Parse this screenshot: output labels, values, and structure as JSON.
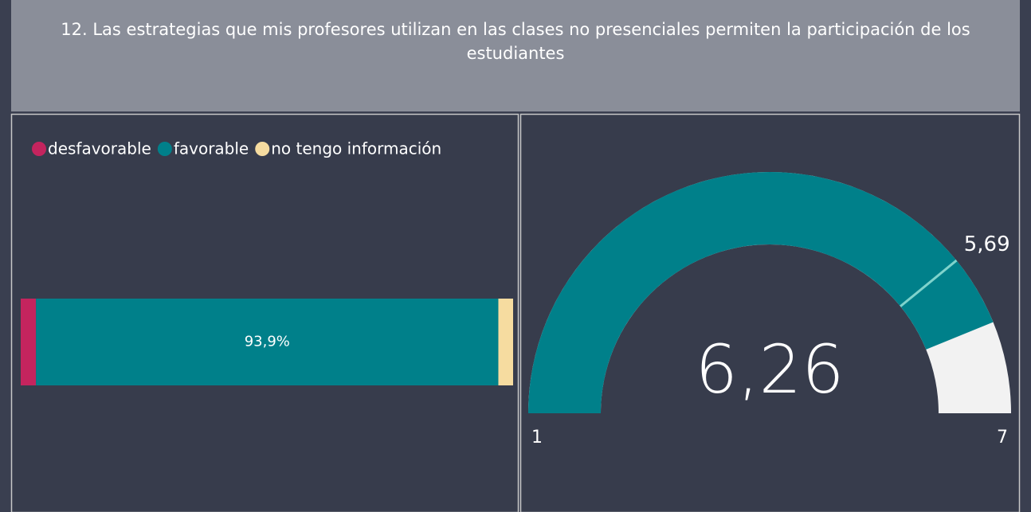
{
  "title": "12. Las estrategias que mis profesores utilizan en las clases no presenciales permiten la participación de los estudiantes",
  "chart_data": [
    {
      "type": "stacked-bar",
      "orientation": "horizontal",
      "categories": [
        null
      ],
      "xlim": [
        0,
        100
      ],
      "legend": "top-left",
      "series": [
        {
          "name": "desfavorable",
          "color": "#c4245e",
          "values": [
            3.1
          ]
        },
        {
          "name": "favorable",
          "color": "#00808a",
          "values": [
            93.9
          ],
          "value_labels": [
            "93,9%"
          ]
        },
        {
          "name": "no tengo información",
          "color": "#f6dca0",
          "values": [
            3.0
          ]
        }
      ]
    },
    {
      "type": "gauge",
      "value": 6.26,
      "value_label": "6,26",
      "min": 1,
      "max": 7,
      "target": 5.69,
      "target_label": "5,69",
      "color": "#00808a",
      "track_color": "#f2f2f2",
      "target_color": "#7fd3cc"
    }
  ]
}
